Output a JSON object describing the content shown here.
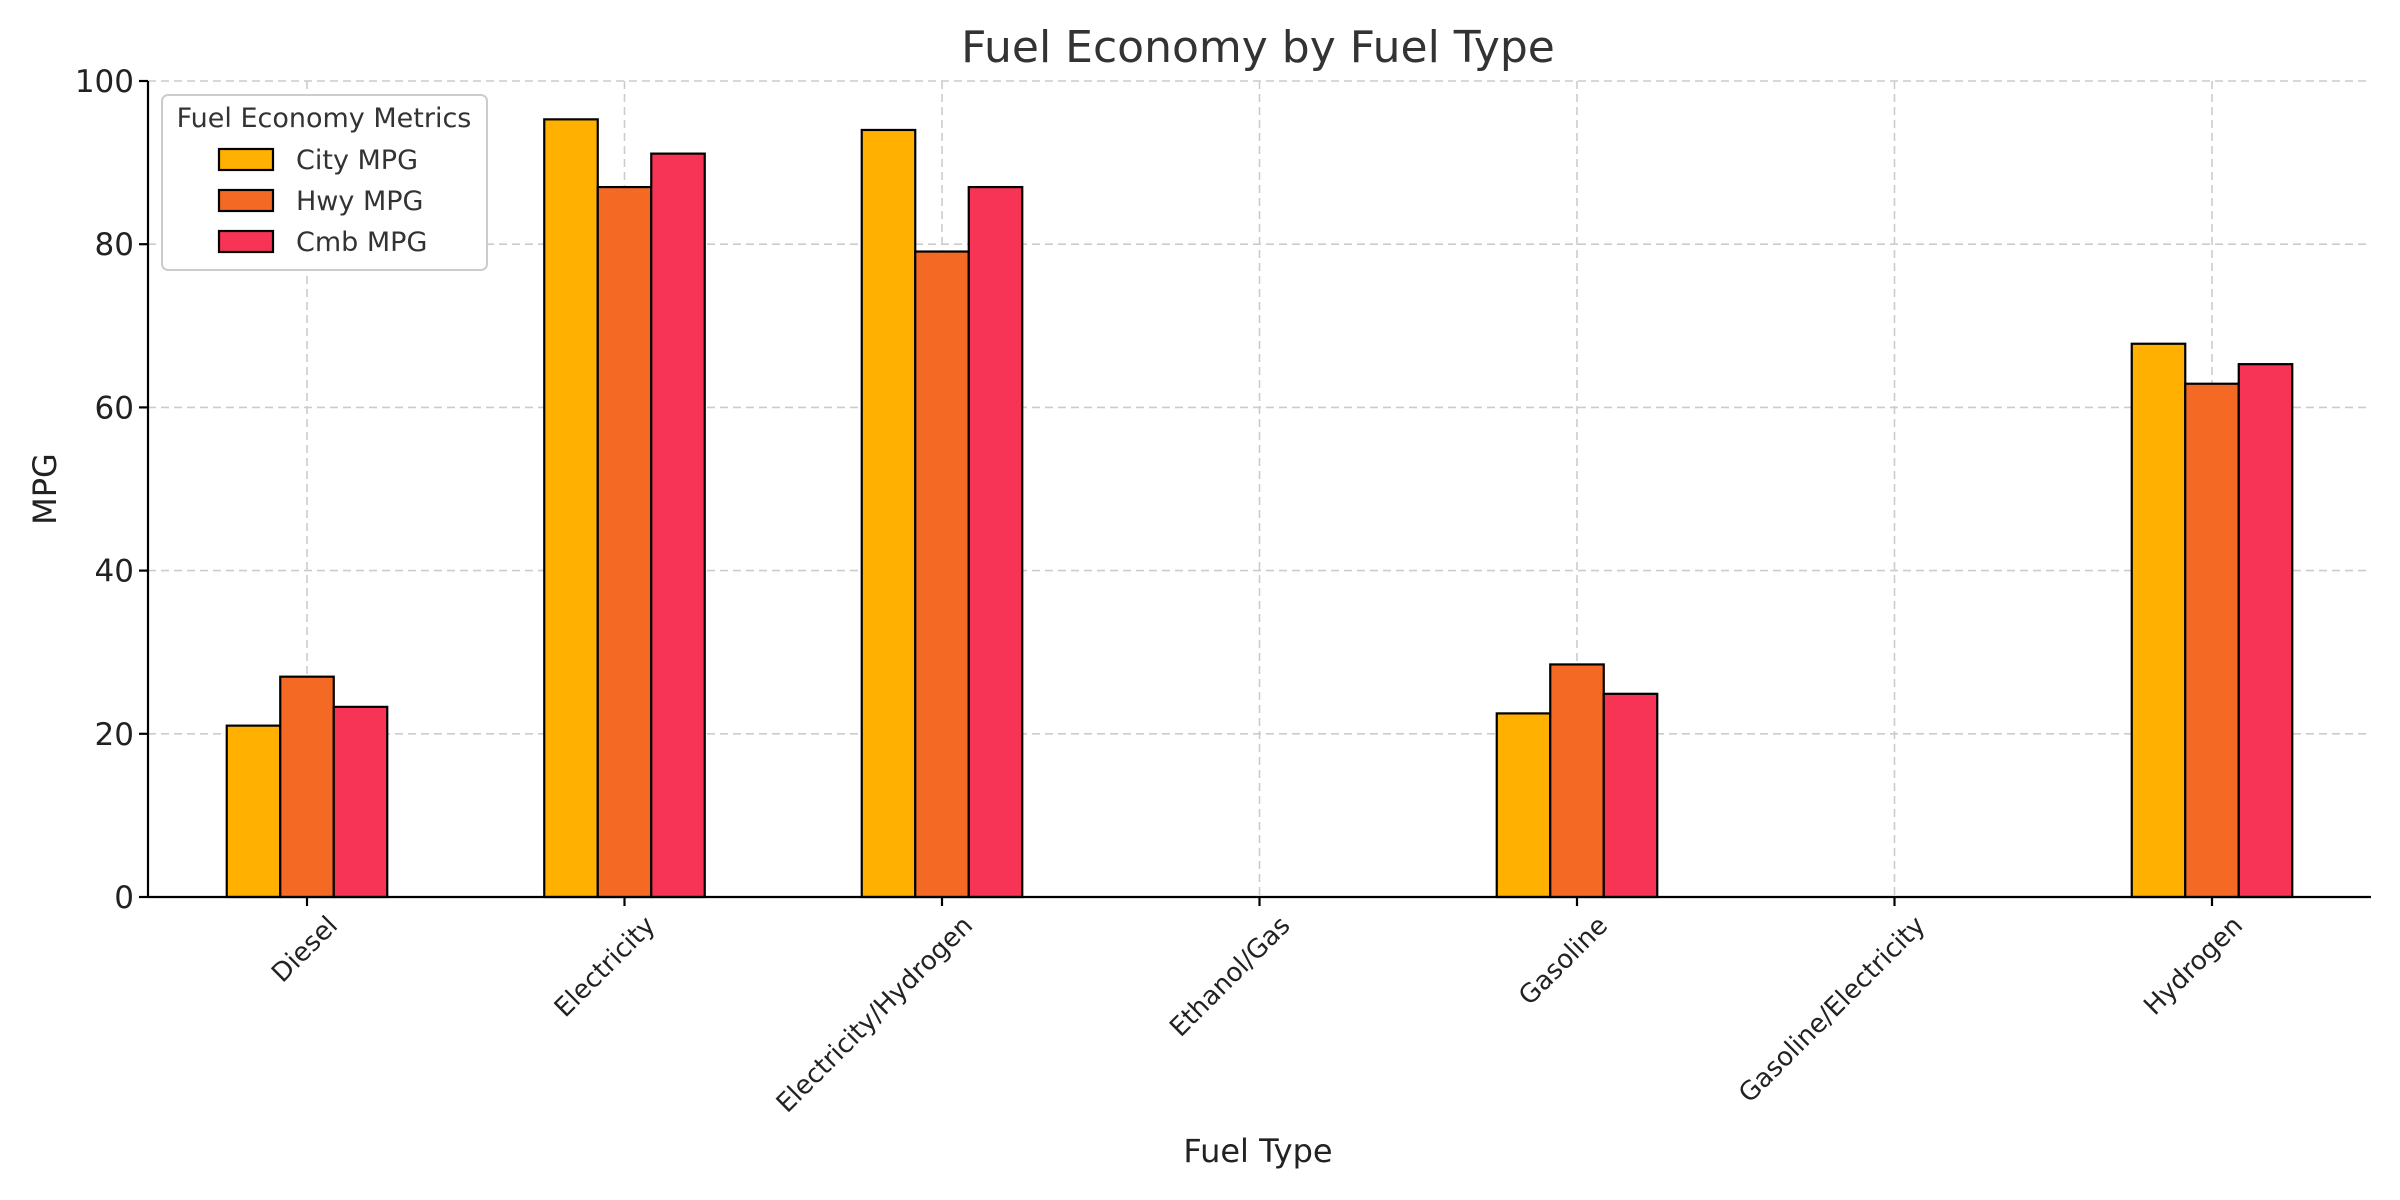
{
  "chart_data": {
    "type": "bar",
    "title": "Fuel Economy by Fuel Type",
    "xlabel": "Fuel Type",
    "ylabel": "MPG",
    "ylim": [
      0,
      100
    ],
    "yticks": [
      0,
      20,
      40,
      60,
      80,
      100
    ],
    "grid": true,
    "legend": {
      "title": "Fuel Economy Metrics",
      "placement": "top-left"
    },
    "categories": [
      "Diesel",
      "Electricity",
      "Electricity/Hydrogen",
      "Ethanol/Gas",
      "Gasoline",
      "Gasoline/Electricity",
      "Hydrogen"
    ],
    "series": [
      {
        "name": "City MPG",
        "color": "#FFB000",
        "values": [
          21.0,
          95.3,
          94.0,
          0,
          22.5,
          0,
          67.8
        ]
      },
      {
        "name": "Hwy MPG",
        "color": "#F46A25",
        "values": [
          27.0,
          87.0,
          79.1,
          0,
          28.5,
          0,
          62.9
        ]
      },
      {
        "name": "Cmb MPG",
        "color": "#F73455",
        "values": [
          23.3,
          91.1,
          87.0,
          0,
          24.9,
          0,
          65.3
        ]
      }
    ]
  }
}
